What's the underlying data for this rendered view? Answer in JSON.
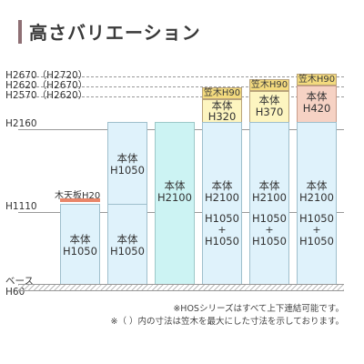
{
  "title": "高さバリエーション",
  "axis_labels": {
    "h2670": "H2670（H2720）",
    "h2620": "H2620（H2670）",
    "h2570": "H2570（H2620）",
    "h2160": "H2160",
    "h1110": "H1110",
    "base": "ベース",
    "h60": "H60"
  },
  "wood_top_label": "木天板H20",
  "columns": [
    {
      "body_label": "本体",
      "body_value": "H1050"
    },
    {
      "top_label": "本体",
      "top_value": "H1050",
      "bottom_label": "本体",
      "bottom_value": "H1050"
    },
    {
      "body_label": "本体",
      "body_value": "H2100"
    },
    {
      "cap": "笠木H90",
      "upper_label": "本体",
      "upper_value": "H320",
      "body_label": "本体",
      "body_value": "H2100",
      "sum_a": "H1050",
      "plus": "+",
      "sum_b": "H1050"
    },
    {
      "cap": "笠木H90",
      "upper_label": "本体",
      "upper_value": "H370",
      "body_label": "本体",
      "body_value": "H2100",
      "sum_a": "H1050",
      "plus": "+",
      "sum_b": "H1050"
    },
    {
      "cap": "笠木H90",
      "upper_label": "本体",
      "upper_value": "H420",
      "body_label": "本体",
      "body_value": "H2100",
      "sum_a": "H1050",
      "plus": "+",
      "sum_b": "H1050"
    }
  ],
  "notes": [
    "※HOSシリーズはすべて上下連結可能です。",
    "※（ ）内の寸法は笠木を最大にした寸法を示しております。"
  ],
  "colors": {
    "accent_bar": "#8e6f74",
    "wood_strip": "#e8866a",
    "cap": "#f3da7e",
    "body": "#dff2fb"
  }
}
